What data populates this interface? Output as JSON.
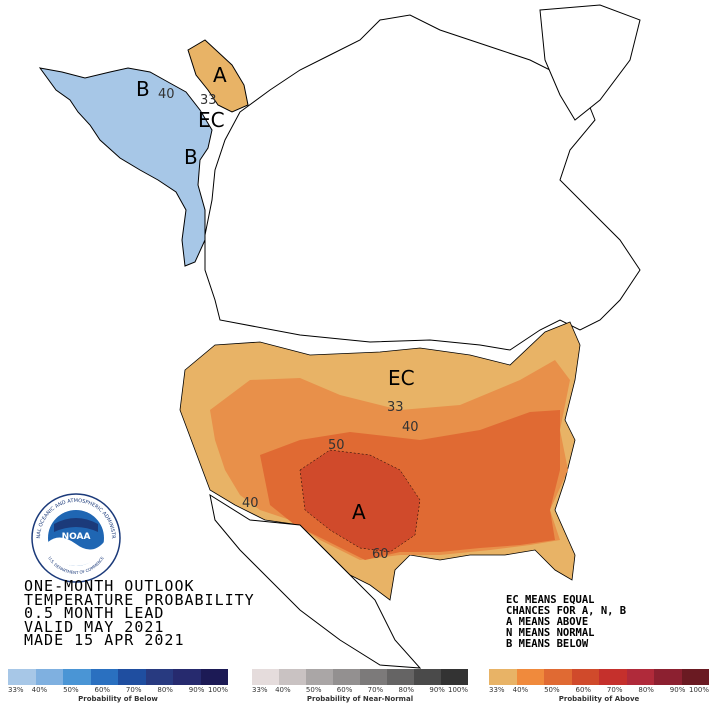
{
  "map": {
    "labels": {
      "a_alaska": "A",
      "b_alaska_west": "B",
      "b_alaska_south": "B",
      "ec_alaska": "EC",
      "ec_conus": "EC",
      "a_texas": "A",
      "c40_alaska": "40",
      "c33_alaska": "33",
      "c33_conus": "33",
      "c40_great_lakes": "40",
      "c50_plains": "50",
      "c40_southwest": "40",
      "c60_texas": "60"
    },
    "colors": {
      "above_33": "#e8b366",
      "above_40": "#e8904a",
      "above_50": "#e06a33",
      "above_60": "#d04a2b",
      "below_33": "#a7c7e7",
      "ocean": "#ffffff",
      "land": "#ffffff",
      "border": "#000000"
    }
  },
  "title": {
    "line1": "ONE-MONTH OUTLOOK",
    "line2": "TEMPERATURE PROBABILITY",
    "line3": "0.5 MONTH LEAD",
    "line4": "VALID MAY 2021",
    "line5": "MADE 15 APR 2021"
  },
  "legend_text": {
    "line1": "EC MEANS EQUAL",
    "line2": "CHANCES FOR A, N, B",
    "line3": "A MEANS ABOVE",
    "line4": "N MEANS NORMAL",
    "line5": "B MEANS BELOW"
  },
  "logo": {
    "text": "NOAA",
    "ring_text": "NATIONAL OCEANIC AND ATMOSPHERIC ADMINISTRATION",
    "ring_text_bottom": "U.S. DEPARTMENT OF COMMERCE"
  },
  "scales": {
    "below": {
      "caption": "Probability of Below",
      "ticks": [
        "33%",
        "40%",
        "50%",
        "60%",
        "70%",
        "80%",
        "90%",
        "100%"
      ],
      "colors": [
        "#a7c7e7",
        "#7fb0e0",
        "#4a95d5",
        "#2a70c0",
        "#1f4ea0",
        "#283a80",
        "#262a6e",
        "#1c1a55"
      ]
    },
    "normal": {
      "caption": "Probability of Near-Normal",
      "ticks": [
        "33%",
        "40%",
        "50%",
        "60%",
        "70%",
        "80%",
        "90%",
        "100%"
      ],
      "colors": [
        "#e5dcdc",
        "#c9c2c2",
        "#aaa6a6",
        "#939090",
        "#7c7a7a",
        "#656464",
        "#4a4a4a",
        "#333333"
      ]
    },
    "above": {
      "caption": "Probability of Above",
      "ticks": [
        "33%",
        "40%",
        "50%",
        "60%",
        "70%",
        "80%",
        "90%",
        "100%"
      ],
      "colors": [
        "#e8b366",
        "#f08a3c",
        "#e06a33",
        "#d04a2b",
        "#c5302c",
        "#b02a3a",
        "#8c2030",
        "#6a1a22"
      ]
    }
  }
}
